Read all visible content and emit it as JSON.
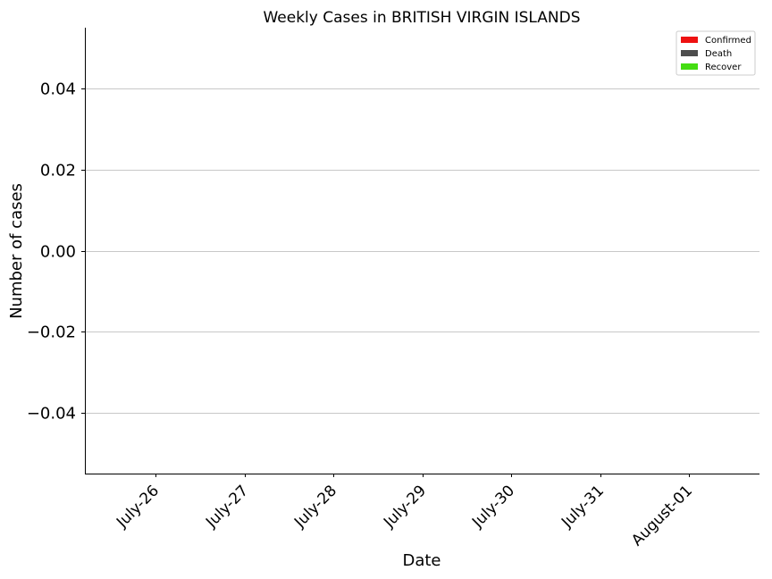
{
  "chart_data": {
    "type": "bar",
    "title": "Weekly Cases in BRITISH VIRGIN ISLANDS",
    "xlabel": "Date",
    "ylabel": "Number of cases",
    "categories": [
      "July-26",
      "July-27",
      "July-28",
      "July-29",
      "July-30",
      "July-31",
      "August-01"
    ],
    "series": [
      {
        "name": "Confirmed",
        "color": "#ee1111",
        "values": [
          0,
          0,
          0,
          0,
          0,
          0,
          0
        ]
      },
      {
        "name": "Death",
        "color": "#4d4d4d",
        "values": [
          0,
          0,
          0,
          0,
          0,
          0,
          0
        ]
      },
      {
        "name": "Recover",
        "color": "#44dd11",
        "values": [
          0,
          0,
          0,
          0,
          0,
          0,
          0
        ]
      }
    ],
    "ylim": [
      -0.055,
      0.055
    ],
    "yticks": [
      0.04,
      0.02,
      0.0,
      -0.02,
      -0.04
    ],
    "ytick_labels": [
      "0.04",
      "0.02",
      "0.00",
      "−0.02",
      "−0.04"
    ],
    "grid": "horizontal",
    "legend_position": "top-right"
  }
}
